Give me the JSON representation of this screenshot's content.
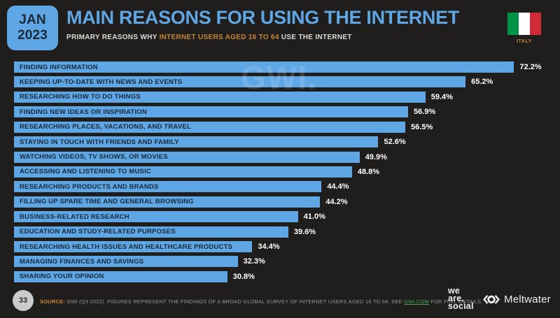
{
  "page": {
    "background": "#201E1C",
    "accent_blue": "#5FA6E4",
    "accent_orange": "#C6863A",
    "link_green": "#4AA45F"
  },
  "header": {
    "date_line1": "JAN",
    "date_line2": "2023",
    "title": "MAIN REASONS FOR USING THE INTERNET",
    "subtitle_prefix": "PRIMARY REASONS WHY ",
    "subtitle_highlight": "INTERNET USERS AGED 16 TO 64",
    "subtitle_suffix": " USE THE INTERNET",
    "country_label": "ITALY",
    "flag_colors": [
      "#009246",
      "#FFFFFF",
      "#CE2B37"
    ]
  },
  "watermark": "GWI.",
  "chart_data": {
    "type": "bar",
    "orientation": "horizontal",
    "title": "MAIN REASONS FOR USING THE INTERNET",
    "xlabel": "",
    "ylabel": "",
    "xlim": [
      0,
      76
    ],
    "grid": false,
    "legend": false,
    "bar_color": "#5FA6E4",
    "label_color": "#17293B",
    "value_color": "#FFFFFF",
    "categories": [
      "FINDING INFORMATION",
      "KEEPING UP-TO-DATE WITH NEWS AND EVENTS",
      "RESEARCHING HOW TO DO THINGS",
      "FINDING NEW IDEAS OR INSPIRATION",
      "RESEARCHING PLACES, VACATIONS, AND TRAVEL",
      "STAYING IN TOUCH WITH FRIENDS AND FAMILY",
      "WATCHING VIDEOS, TV SHOWS, OR MOVIES",
      "ACCESSING AND LISTENING TO MUSIC",
      "RESEARCHING PRODUCTS AND BRANDS",
      "FILLING UP SPARE TIME AND GENERAL BROWSING",
      "BUSINESS-RELATED RESEARCH",
      "EDUCATION AND STUDY-RELATED PURPOSES",
      "RESEARCHING HEALTH ISSUES AND HEALTHCARE PRODUCTS",
      "MANAGING FINANCES AND SAVINGS",
      "SHARING YOUR OPINION"
    ],
    "values": [
      72.2,
      65.2,
      59.4,
      56.9,
      56.5,
      52.6,
      49.9,
      48.8,
      44.4,
      44.2,
      41.0,
      39.6,
      34.4,
      32.3,
      30.8
    ],
    "value_labels": [
      "72.2%",
      "65.2%",
      "59.4%",
      "56.9%",
      "56.5%",
      "52.6%",
      "49.9%",
      "48.8%",
      "44.4%",
      "44.2%",
      "41.0%",
      "39.6%",
      "34.4%",
      "32.3%",
      "30.8%"
    ]
  },
  "footer": {
    "page_number": "33",
    "source_tag": "SOURCE:",
    "source_text": " GWI (Q3 2022). FIGURES REPRESENT THE FINDINGS OF A BROAD GLOBAL SURVEY OF INTERNET USERS AGED 16 TO 64. SEE ",
    "source_link": "GWI.COM",
    "source_suffix": " FOR FULL DETAILS.",
    "logo_we_are_social": [
      "we",
      "are.",
      "social"
    ],
    "logo_meltwater": "Meltwater"
  }
}
